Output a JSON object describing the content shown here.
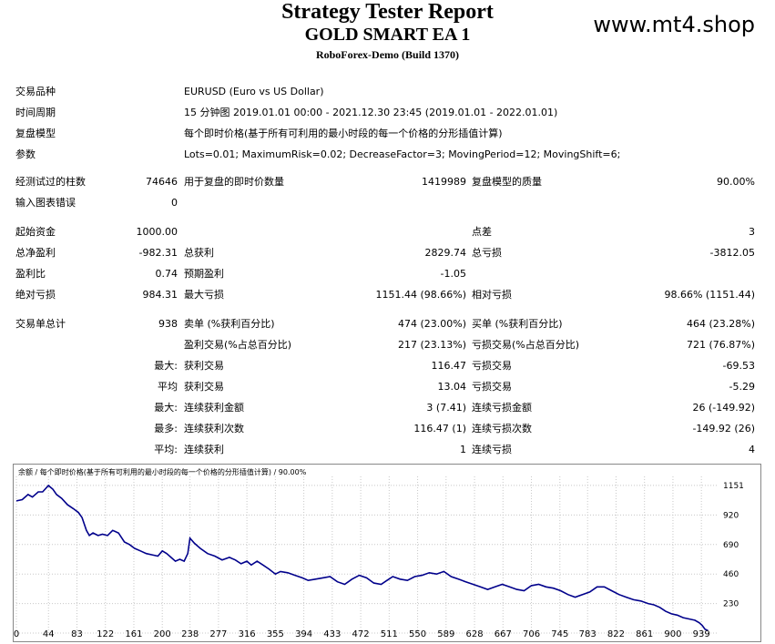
{
  "header": {
    "title": "Strategy Tester Report",
    "ea_name": "GOLD SMART EA 1",
    "server": "RoboForex-Demo (Build 1370)",
    "watermark": "www.mt4.shop"
  },
  "info": {
    "symbol_label": "交易品种",
    "symbol_value": "EURUSD (Euro vs US Dollar)",
    "period_label": "时间周期",
    "period_value": "15 分钟图 2019.01.01 00:00 - 2021.12.30 23:45 (2019.01.01 - 2022.01.01)",
    "model_label": "复盘模型",
    "model_value": "每个即时价格(基于所有可利用的最小时段的每一个价格的分形插值计算)",
    "params_label": "参数",
    "params_value": "Lots=0.01; MaximumRisk=0.02; DecreaseFactor=3; MovingPeriod=12; MovingShift=6;"
  },
  "stats": {
    "bars_label": "经测试过的柱数",
    "bars_value": "74646",
    "ticks_label": "用于复盘的即时价数量",
    "ticks_value": "1419989",
    "quality_label": "复盘模型的质量",
    "quality_value": "90.00%",
    "mismatch_label": "输入图表错误",
    "mismatch_value": "0",
    "deposit_label": "起始资金",
    "deposit_value": "1000.00",
    "spread_label": "点差",
    "spread_value": "3",
    "net_label": "总净盈利",
    "net_value": "-982.31",
    "gross_profit_label": "总获利",
    "gross_profit_value": "2829.74",
    "gross_loss_label": "总亏损",
    "gross_loss_value": "-3812.05",
    "pf_label": "盈利比",
    "pf_value": "0.74",
    "payoff_label": "预期盈利",
    "payoff_value": "-1.05",
    "abs_dd_label": "绝对亏损",
    "abs_dd_value": "984.31",
    "max_dd_label": "最大亏损",
    "max_dd_value": "1151.44 (98.66%)",
    "rel_dd_label": "相对亏损",
    "rel_dd_value": "98.66% (1151.44)",
    "trades_label": "交易单总计",
    "trades_value": "938",
    "short_label": "卖单 (%获利百分比)",
    "short_value": "474 (23.00%)",
    "long_label": "买单 (%获利百分比)",
    "long_value": "464 (23.28%)",
    "win_label": "盈利交易(%占总百分比)",
    "win_value": "217 (23.13%)",
    "loss_label": "亏损交易(%占总百分比)",
    "loss_value": "721 (76.87%)",
    "largest_prefix": "最大:",
    "largest_win_label": "获利交易",
    "largest_win_value": "116.47",
    "largest_loss_label": "亏损交易",
    "largest_loss_value": "-69.53",
    "average_prefix": "平均",
    "avg_win_label": "获利交易",
    "avg_win_value": "13.04",
    "avg_loss_label": "亏损交易",
    "avg_loss_value": "-5.29",
    "max_prefix": "最大:",
    "max_cons_win_label": "连续获利金额",
    "max_cons_win_value": "3 (7.41)",
    "max_cons_loss_label": "连续亏损金额",
    "max_cons_loss_value": "26 (-149.92)",
    "most_prefix": "最多:",
    "most_cons_win_label": "连续获利次数",
    "most_cons_win_value": "116.47 (1)",
    "most_cons_loss_label": "连续亏损次数",
    "most_cons_loss_value": "-149.92 (26)",
    "avgc_prefix": "平均:",
    "avg_cons_win_label": "连续获利",
    "avg_cons_win_value": "1",
    "avg_cons_loss_label": "连续亏损",
    "avg_cons_loss_value": "4"
  },
  "chart_data": {
    "type": "line",
    "title": "余额 / 每个即时价格(基于所有可利用的最小时段的每一个价格的分形插值计算) / 90.00%",
    "xlim": [
      0,
      960
    ],
    "ylim": [
      0,
      1221
    ],
    "x_ticks": [
      0,
      44,
      83,
      122,
      161,
      200,
      238,
      277,
      316,
      355,
      394,
      433,
      472,
      511,
      550,
      589,
      628,
      667,
      706,
      745,
      783,
      822,
      861,
      900,
      939
    ],
    "y_ticks": [
      0,
      230,
      460,
      690,
      920,
      1151
    ],
    "y_tick_labels": [
      "0",
      "230",
      "460",
      "690",
      "920",
      "1151"
    ],
    "line_color": "#00008b",
    "series": [
      {
        "x": [
          0,
          8,
          16,
          22,
          30,
          36,
          44,
          50,
          55,
          62,
          70,
          78,
          85,
          90,
          96,
          100,
          105,
          112,
          118,
          125,
          132,
          140,
          148,
          155,
          162,
          170,
          178,
          186,
          194,
          200,
          206,
          212,
          218,
          224,
          230,
          235,
          238,
          244,
          252,
          262,
          272,
          282,
          292,
          300,
          308,
          316,
          322,
          330,
          338,
          346,
          355,
          362,
          372,
          382,
          392,
          400,
          410,
          420,
          430,
          440,
          450,
          460,
          470,
          480,
          490,
          500,
          508,
          516,
          526,
          536,
          546,
          556,
          566,
          576,
          586,
          596,
          606,
          616,
          626,
          636,
          646,
          656,
          666,
          676,
          686,
          696,
          706,
          716,
          726,
          736,
          746,
          756,
          766,
          776,
          786,
          796,
          806,
          816,
          826,
          836,
          846,
          856,
          866,
          874,
          882,
          890,
          898,
          906,
          914,
          922,
          930,
          936,
          940,
          944,
          948
        ],
        "values": [
          1030,
          1040,
          1080,
          1060,
          1100,
          1100,
          1150,
          1120,
          1080,
          1050,
          1000,
          970,
          940,
          900,
          800,
          760,
          780,
          760,
          770,
          760,
          800,
          780,
          710,
          690,
          660,
          640,
          620,
          610,
          600,
          640,
          620,
          590,
          560,
          575,
          560,
          620,
          740,
          700,
          660,
          620,
          600,
          570,
          590,
          570,
          540,
          560,
          530,
          560,
          530,
          500,
          460,
          480,
          470,
          450,
          430,
          410,
          420,
          430,
          440,
          400,
          380,
          420,
          450,
          430,
          390,
          380,
          410,
          440,
          420,
          410,
          440,
          450,
          470,
          460,
          480,
          440,
          420,
          400,
          380,
          360,
          340,
          360,
          380,
          360,
          340,
          330,
          370,
          380,
          360,
          350,
          330,
          300,
          280,
          300,
          320,
          360,
          360,
          330,
          300,
          280,
          260,
          250,
          230,
          220,
          200,
          170,
          150,
          140,
          120,
          110,
          100,
          80,
          60,
          30,
          20
        ]
      }
    ]
  }
}
